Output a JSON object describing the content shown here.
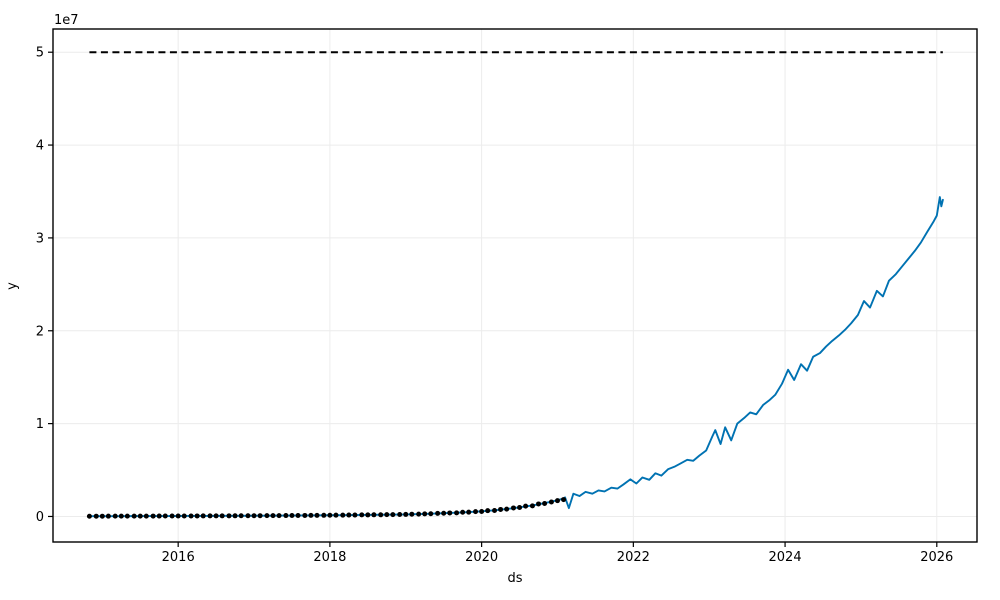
{
  "figure": {
    "background": "#ffffff"
  },
  "chart_data": {
    "type": "line",
    "title": "",
    "xlabel": "ds",
    "ylabel": "y",
    "offset_text": "1e7",
    "legend": "none",
    "grid": "on",
    "value_unit": 1000000,
    "xlim": [
      2014.35,
      2026.53
    ],
    "ylim": [
      -2.75,
      52.5
    ],
    "x_ticks": {
      "values": [
        2016,
        2018,
        2020,
        2022,
        2024,
        2026
      ],
      "labels": [
        "2016",
        "2018",
        "2020",
        "2022",
        "2024",
        "2026"
      ]
    },
    "y_ticks": {
      "values": [
        0,
        10,
        20,
        30,
        40,
        50
      ],
      "labels": [
        "0",
        "1",
        "2",
        "3",
        "4",
        "5"
      ]
    },
    "colors": {
      "forecast_line": "#0072B2",
      "observations": "#000000",
      "cap_line": "#000000",
      "grid": "#ececec",
      "axes": "#000000"
    },
    "cap_line": {
      "value": 50,
      "x_start": 2014.83,
      "x_end": 2026.08,
      "style": "dashed"
    },
    "series": {
      "observations": {
        "name": "history (y)",
        "type": "scatter",
        "points": [
          [
            2014.83,
            0.028
          ],
          [
            2014.92,
            0.029
          ],
          [
            2015.0,
            0.03
          ],
          [
            2015.08,
            0.031
          ],
          [
            2015.17,
            0.033
          ],
          [
            2015.25,
            0.034
          ],
          [
            2015.33,
            0.036
          ],
          [
            2015.42,
            0.037
          ],
          [
            2015.5,
            0.039
          ],
          [
            2015.58,
            0.04
          ],
          [
            2015.67,
            0.042
          ],
          [
            2015.75,
            0.044
          ],
          [
            2015.83,
            0.046
          ],
          [
            2015.92,
            0.048
          ],
          [
            2016.0,
            0.05
          ],
          [
            2016.08,
            0.052
          ],
          [
            2016.17,
            0.054
          ],
          [
            2016.25,
            0.056
          ],
          [
            2016.33,
            0.059
          ],
          [
            2016.42,
            0.061
          ],
          [
            2016.5,
            0.063
          ],
          [
            2016.58,
            0.066
          ],
          [
            2016.67,
            0.068
          ],
          [
            2016.75,
            0.071
          ],
          [
            2016.83,
            0.074
          ],
          [
            2016.92,
            0.077
          ],
          [
            2017.0,
            0.08
          ],
          [
            2017.08,
            0.083
          ],
          [
            2017.17,
            0.087
          ],
          [
            2017.25,
            0.09
          ],
          [
            2017.33,
            0.094
          ],
          [
            2017.42,
            0.098
          ],
          [
            2017.5,
            0.102
          ],
          [
            2017.58,
            0.106
          ],
          [
            2017.67,
            0.111
          ],
          [
            2017.75,
            0.115
          ],
          [
            2017.83,
            0.12
          ],
          [
            2017.92,
            0.125
          ],
          [
            2018.0,
            0.13
          ],
          [
            2018.08,
            0.14
          ],
          [
            2018.17,
            0.138
          ],
          [
            2018.25,
            0.151
          ],
          [
            2018.33,
            0.152
          ],
          [
            2018.42,
            0.168
          ],
          [
            2018.5,
            0.167
          ],
          [
            2018.58,
            0.179
          ],
          [
            2018.67,
            0.178
          ],
          [
            2018.75,
            0.199
          ],
          [
            2018.83,
            0.197
          ],
          [
            2018.92,
            0.214
          ],
          [
            2019.0,
            0.22
          ],
          [
            2019.08,
            0.244
          ],
          [
            2019.17,
            0.248
          ],
          [
            2019.25,
            0.283
          ],
          [
            2019.33,
            0.293
          ],
          [
            2019.42,
            0.335
          ],
          [
            2019.5,
            0.344
          ],
          [
            2019.58,
            0.38
          ],
          [
            2019.67,
            0.389
          ],
          [
            2019.75,
            0.45
          ],
          [
            2019.83,
            0.463
          ],
          [
            2019.92,
            0.52
          ],
          [
            2020.0,
            0.539
          ],
          [
            2020.08,
            0.624
          ],
          [
            2020.17,
            0.647
          ],
          [
            2020.25,
            0.757
          ],
          [
            2020.33,
            0.793
          ],
          [
            2020.42,
            0.917
          ],
          [
            2020.5,
            0.962
          ],
          [
            2020.58,
            1.112
          ],
          [
            2020.67,
            1.142
          ],
          [
            2020.75,
            1.349
          ],
          [
            2020.83,
            1.4
          ],
          [
            2020.92,
            1.56
          ],
          [
            2021.0,
            1.7
          ],
          [
            2021.08,
            1.82
          ]
        ]
      },
      "yhat": {
        "name": "forecast (yhat)",
        "type": "line",
        "points": [
          [
            2014.83,
            0.028
          ],
          [
            2014.92,
            0.029
          ],
          [
            2015.0,
            0.03
          ],
          [
            2015.08,
            0.031
          ],
          [
            2015.17,
            0.033
          ],
          [
            2015.25,
            0.034
          ],
          [
            2015.33,
            0.036
          ],
          [
            2015.42,
            0.037
          ],
          [
            2015.5,
            0.039
          ],
          [
            2015.58,
            0.04
          ],
          [
            2015.67,
            0.042
          ],
          [
            2015.75,
            0.044
          ],
          [
            2015.83,
            0.046
          ],
          [
            2015.92,
            0.048
          ],
          [
            2016.0,
            0.05
          ],
          [
            2016.08,
            0.052
          ],
          [
            2016.17,
            0.054
          ],
          [
            2016.25,
            0.056
          ],
          [
            2016.33,
            0.059
          ],
          [
            2016.42,
            0.061
          ],
          [
            2016.5,
            0.063
          ],
          [
            2016.58,
            0.066
          ],
          [
            2016.67,
            0.068
          ],
          [
            2016.75,
            0.071
          ],
          [
            2016.83,
            0.074
          ],
          [
            2016.92,
            0.077
          ],
          [
            2017.0,
            0.08
          ],
          [
            2017.08,
            0.083
          ],
          [
            2017.17,
            0.087
          ],
          [
            2017.25,
            0.09
          ],
          [
            2017.33,
            0.094
          ],
          [
            2017.42,
            0.098
          ],
          [
            2017.5,
            0.102
          ],
          [
            2017.58,
            0.106
          ],
          [
            2017.67,
            0.111
          ],
          [
            2017.75,
            0.115
          ],
          [
            2017.83,
            0.12
          ],
          [
            2017.92,
            0.125
          ],
          [
            2018.0,
            0.13
          ],
          [
            2018.08,
            0.136
          ],
          [
            2018.17,
            0.142
          ],
          [
            2018.25,
            0.148
          ],
          [
            2018.33,
            0.155
          ],
          [
            2018.42,
            0.162
          ],
          [
            2018.5,
            0.169
          ],
          [
            2018.58,
            0.177
          ],
          [
            2018.67,
            0.185
          ],
          [
            2018.75,
            0.193
          ],
          [
            2018.83,
            0.201
          ],
          [
            2018.92,
            0.21
          ],
          [
            2019.0,
            0.22
          ],
          [
            2019.08,
            0.237
          ],
          [
            2019.17,
            0.256
          ],
          [
            2019.25,
            0.277
          ],
          [
            2019.33,
            0.299
          ],
          [
            2019.42,
            0.322
          ],
          [
            2019.5,
            0.348
          ],
          [
            2019.58,
            0.376
          ],
          [
            2019.67,
            0.405
          ],
          [
            2019.75,
            0.437
          ],
          [
            2019.83,
            0.472
          ],
          [
            2019.92,
            0.51
          ],
          [
            2020.0,
            0.55
          ],
          [
            2020.08,
            0.606
          ],
          [
            2020.17,
            0.667
          ],
          [
            2020.25,
            0.735
          ],
          [
            2020.33,
            0.809
          ],
          [
            2020.42,
            0.891
          ],
          [
            2020.5,
            0.981
          ],
          [
            2020.58,
            1.08
          ],
          [
            2020.67,
            1.19
          ],
          [
            2020.75,
            1.31
          ],
          [
            2020.83,
            1.443
          ],
          [
            2020.92,
            1.589
          ],
          [
            2021.0,
            1.75
          ],
          [
            2021.08,
            1.93
          ],
          [
            2021.1,
            2.05
          ],
          [
            2021.15,
            0.9
          ],
          [
            2021.21,
            2.45
          ],
          [
            2021.29,
            2.2
          ],
          [
            2021.37,
            2.65
          ],
          [
            2021.46,
            2.45
          ],
          [
            2021.54,
            2.8
          ],
          [
            2021.62,
            2.7
          ],
          [
            2021.71,
            3.1
          ],
          [
            2021.79,
            3.0
          ],
          [
            2021.87,
            3.45
          ],
          [
            2021.96,
            4.0
          ],
          [
            2022.04,
            3.55
          ],
          [
            2022.12,
            4.2
          ],
          [
            2022.21,
            3.95
          ],
          [
            2022.29,
            4.65
          ],
          [
            2022.37,
            4.4
          ],
          [
            2022.46,
            5.1
          ],
          [
            2022.54,
            5.35
          ],
          [
            2022.62,
            5.7
          ],
          [
            2022.71,
            6.1
          ],
          [
            2022.79,
            6.0
          ],
          [
            2022.87,
            6.55
          ],
          [
            2022.96,
            7.1
          ],
          [
            2023.04,
            8.6
          ],
          [
            2023.08,
            9.3
          ],
          [
            2023.15,
            7.8
          ],
          [
            2023.21,
            9.6
          ],
          [
            2023.29,
            8.2
          ],
          [
            2023.37,
            10.0
          ],
          [
            2023.46,
            10.6
          ],
          [
            2023.54,
            11.2
          ],
          [
            2023.62,
            11.0
          ],
          [
            2023.71,
            12.0
          ],
          [
            2023.79,
            12.5
          ],
          [
            2023.87,
            13.1
          ],
          [
            2023.96,
            14.3
          ],
          [
            2024.04,
            15.8
          ],
          [
            2024.12,
            14.7
          ],
          [
            2024.21,
            16.4
          ],
          [
            2024.29,
            15.7
          ],
          [
            2024.37,
            17.2
          ],
          [
            2024.46,
            17.6
          ],
          [
            2024.54,
            18.3
          ],
          [
            2024.62,
            18.9
          ],
          [
            2024.71,
            19.5
          ],
          [
            2024.79,
            20.1
          ],
          [
            2024.87,
            20.8
          ],
          [
            2024.96,
            21.7
          ],
          [
            2025.04,
            23.2
          ],
          [
            2025.12,
            22.5
          ],
          [
            2025.21,
            24.3
          ],
          [
            2025.29,
            23.7
          ],
          [
            2025.37,
            25.4
          ],
          [
            2025.46,
            26.1
          ],
          [
            2025.54,
            26.9
          ],
          [
            2025.62,
            27.7
          ],
          [
            2025.71,
            28.6
          ],
          [
            2025.79,
            29.5
          ],
          [
            2025.87,
            30.6
          ],
          [
            2025.96,
            31.8
          ],
          [
            2026.0,
            32.4
          ],
          [
            2026.04,
            34.4
          ],
          [
            2026.06,
            33.4
          ],
          [
            2026.08,
            34.1
          ]
        ]
      }
    }
  }
}
